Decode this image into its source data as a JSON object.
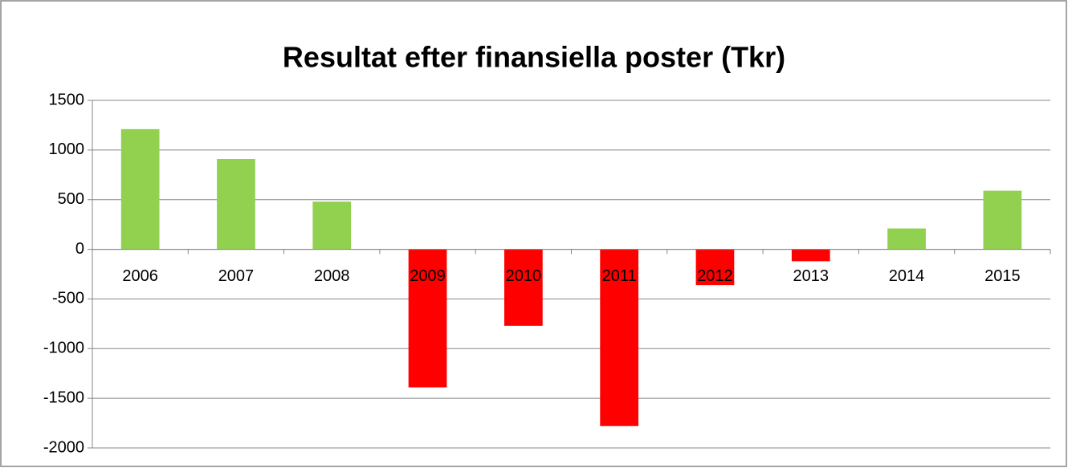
{
  "chart_data": {
    "type": "bar",
    "title": "Resultat efter finansiella poster (Tkr)",
    "categories": [
      "2006",
      "2007",
      "2008",
      "2009",
      "2010",
      "2011",
      "2012",
      "2013",
      "2014",
      "2015"
    ],
    "values": [
      1210,
      910,
      480,
      -1390,
      -770,
      -1780,
      -360,
      -120,
      210,
      590
    ],
    "colors": [
      "#92d050",
      "#92d050",
      "#92d050",
      "#ff0000",
      "#ff0000",
      "#ff0000",
      "#ff0000",
      "#ff0000",
      "#92d050",
      "#92d050"
    ],
    "ylim": [
      -2000,
      1500
    ],
    "yticks": [
      -2000,
      -1500,
      -1000,
      -500,
      0,
      500,
      1000,
      1500
    ],
    "grid": true
  }
}
